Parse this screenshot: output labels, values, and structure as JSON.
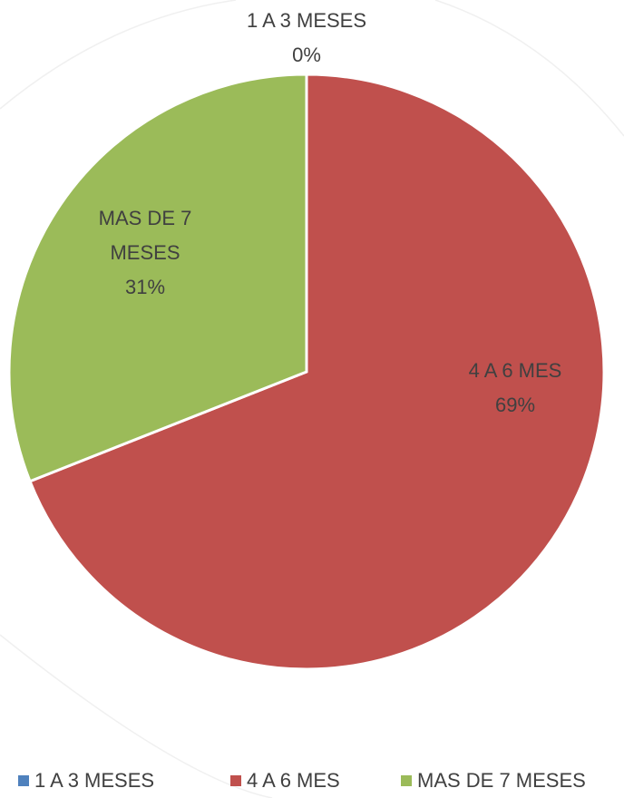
{
  "chart_data": {
    "type": "pie",
    "categories": [
      "1 A 3 MESES",
      "4 A 6 MES",
      "MAS DE 7 MESES"
    ],
    "values": [
      0,
      69,
      31
    ],
    "value_labels": [
      "0%",
      "69%",
      "31%"
    ],
    "colors": [
      "#4f81bd",
      "#c0504d",
      "#9bbb59"
    ],
    "legend": "bottom"
  }
}
